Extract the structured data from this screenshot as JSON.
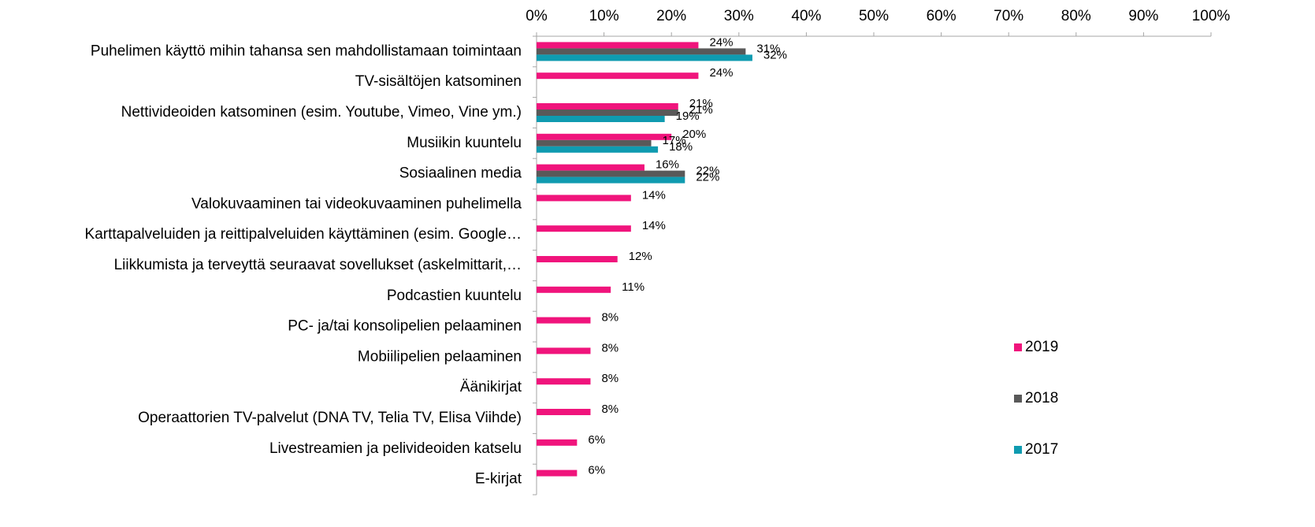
{
  "chart_data": {
    "type": "bar",
    "orientation": "horizontal",
    "categories": [
      "Puhelimen käyttö mihin tahansa sen mahdollistamaan toimintaan",
      "TV-sisältöjen katsominen",
      "Nettivideoiden katsominen (esim. Youtube, Vimeo, Vine ym.)",
      "Musiikin kuuntelu",
      "Sosiaalinen media",
      "Valokuvaaminen tai videokuvaaminen puhelimella",
      "Karttapalveluiden ja reittipalveluiden käyttäminen (esim. Google…",
      "Liikkumista ja terveyttä seuraavat sovellukset (askelmittarit,…",
      "Podcastien kuuntelu",
      "PC- ja/tai konsolipelien pelaaminen",
      "Mobiilipelien pelaaminen",
      "Äänikirjat",
      "Operaattorien TV-palvelut (DNA TV, Telia TV, Elisa Viihde)",
      "Livestreamien ja pelivideoiden katselu",
      "E-kirjat"
    ],
    "series": [
      {
        "name": "2019",
        "color": "#f0147c",
        "values": [
          24,
          24,
          21,
          20,
          16,
          14,
          14,
          12,
          11,
          8,
          8,
          8,
          8,
          6,
          6
        ],
        "value_labels": [
          "24%",
          "24%",
          "21%",
          "20%",
          "16%",
          "14%",
          "14%",
          "12%",
          "11%",
          "8%",
          "8%",
          "8%",
          "8%",
          "6%",
          "6%"
        ]
      },
      {
        "name": "2018",
        "color": "#595959",
        "values": [
          31,
          null,
          21,
          17,
          22,
          null,
          null,
          null,
          null,
          null,
          null,
          null,
          null,
          null,
          null
        ],
        "value_labels": [
          "31%",
          null,
          "21%",
          "17%",
          "22%",
          null,
          null,
          null,
          null,
          null,
          null,
          null,
          null,
          null,
          null
        ]
      },
      {
        "name": "2017",
        "color": "#0f9bb0",
        "values": [
          32,
          null,
          19,
          18,
          22,
          null,
          null,
          null,
          null,
          null,
          null,
          null,
          null,
          null,
          null
        ],
        "value_labels": [
          "32%",
          null,
          "19%",
          "18%",
          "22%",
          null,
          null,
          null,
          null,
          null,
          null,
          null,
          null,
          null,
          null
        ]
      }
    ],
    "xlim": [
      0,
      100
    ],
    "xticks": [
      {
        "value": 0,
        "label": "0%"
      },
      {
        "value": 10,
        "label": "10%"
      },
      {
        "value": 20,
        "label": "20%"
      },
      {
        "value": 30,
        "label": "30%"
      },
      {
        "value": 40,
        "label": "40%"
      },
      {
        "value": 50,
        "label": "50%"
      },
      {
        "value": 60,
        "label": "60%"
      },
      {
        "value": 70,
        "label": "70%"
      },
      {
        "value": 80,
        "label": "80%"
      },
      {
        "value": 90,
        "label": "90%"
      },
      {
        "value": 100,
        "label": "100%"
      }
    ],
    "legend": "right",
    "grid": false
  }
}
